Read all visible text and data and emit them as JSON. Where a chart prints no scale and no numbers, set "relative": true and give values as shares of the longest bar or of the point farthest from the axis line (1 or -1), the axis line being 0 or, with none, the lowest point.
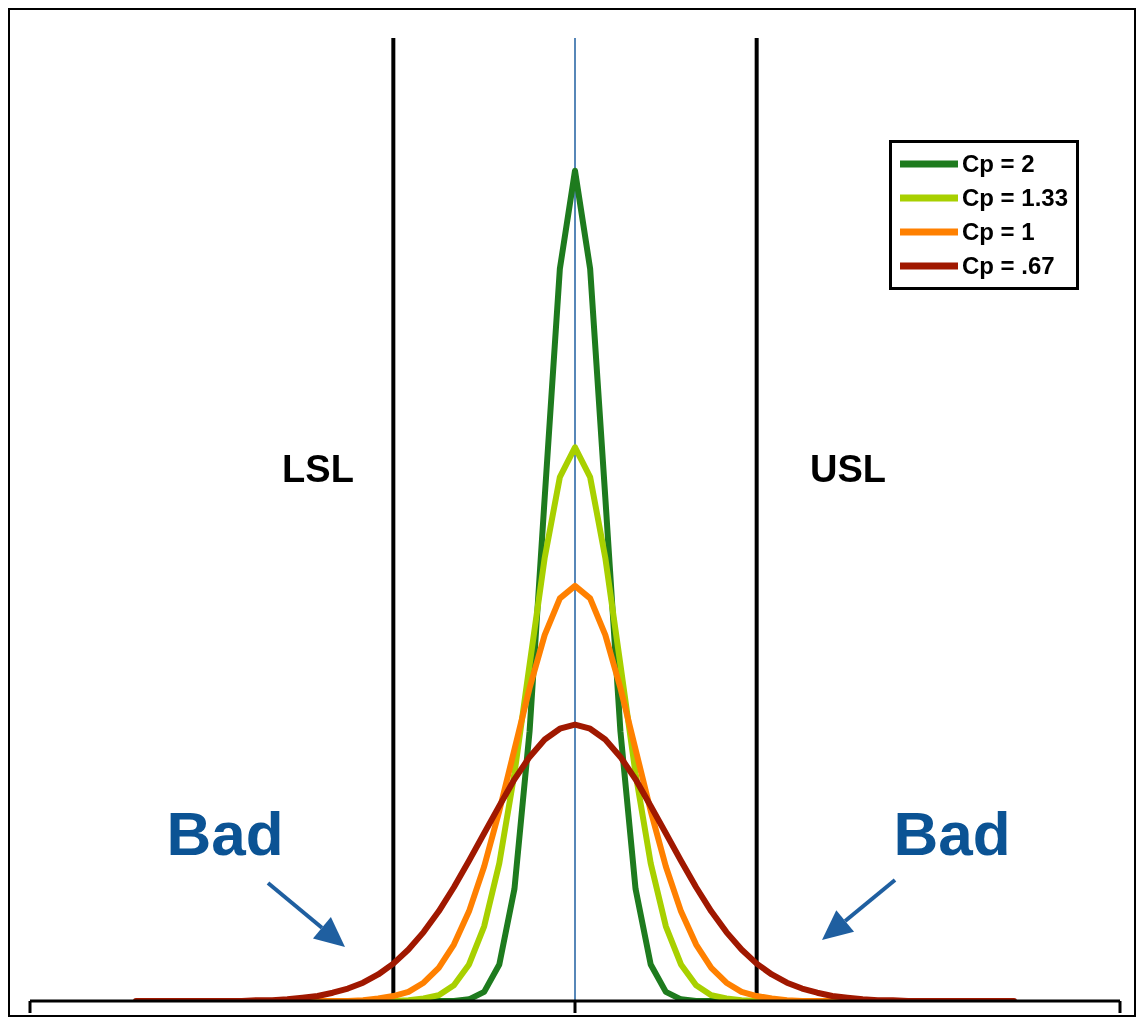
{
  "chart_data": {
    "type": "line",
    "relative": true,
    "categories": [
      null,
      null,
      null,
      null,
      null,
      null,
      null,
      null,
      null,
      null,
      null,
      null,
      null,
      null,
      null,
      null,
      null,
      null,
      null,
      null,
      null,
      null,
      null,
      null,
      null,
      null,
      null,
      null,
      null,
      null,
      null,
      null,
      null,
      null,
      null,
      null,
      null,
      null,
      null,
      null,
      null,
      null,
      null,
      null,
      null,
      null,
      null,
      null,
      null,
      null,
      null,
      null,
      null,
      null,
      null,
      null,
      null,
      null,
      null,
      null,
      null,
      null,
      null,
      null,
      null,
      null,
      null,
      null,
      null,
      null,
      null,
      null,
      null
    ],
    "legend": "top right",
    "marker": "none",
    "line_style": "solid",
    "series": [
      {
        "name": "Cp = 2",
        "color": "#1e7b1e",
        "values": [
          null,
          null,
          null,
          null,
          null,
          null,
          null,
          null,
          null,
          null,
          null,
          null,
          null,
          null,
          null,
          null,
          null,
          null,
          null,
          null,
          null,
          null,
          null,
          null,
          null,
          null,
          0,
          0,
          0,
          0.002,
          0.011,
          0.044,
          0.135,
          0.325,
          0.607,
          0.882,
          1,
          0.882,
          0.607,
          0.325,
          0.135,
          0.044,
          0.011,
          0.002,
          0,
          0,
          0,
          null,
          null,
          null,
          null,
          null,
          null,
          null,
          null,
          null,
          null,
          null,
          null,
          null,
          null,
          null,
          null,
          null,
          null,
          null,
          null,
          null,
          null,
          null,
          null,
          null,
          null
        ]
      },
      {
        "name": "Cp = 1.33",
        "color": "#a8d000",
        "values": [
          null,
          null,
          null,
          null,
          null,
          null,
          null,
          null,
          null,
          null,
          null,
          null,
          null,
          null,
          null,
          null,
          null,
          null,
          null,
          null,
          null,
          null,
          0,
          0,
          0,
          0.001,
          0.003,
          0.007,
          0.019,
          0.044,
          0.09,
          0.166,
          0.274,
          0.405,
          0.534,
          0.631,
          0.667,
          0.631,
          0.534,
          0.405,
          0.274,
          0.166,
          0.09,
          0.044,
          0.019,
          0.007,
          0.003,
          0.001,
          0,
          0,
          0,
          null,
          null,
          null,
          null,
          null,
          null,
          null,
          null,
          null,
          null,
          null,
          null,
          null,
          null,
          null,
          null,
          null,
          null,
          null,
          null,
          null,
          null
        ]
      },
      {
        "name": "Cp = 1",
        "color": "#ff8000",
        "values": [
          null,
          null,
          null,
          null,
          null,
          null,
          null,
          null,
          null,
          null,
          null,
          null,
          null,
          null,
          null,
          null,
          null,
          null,
          0,
          0,
          0,
          0,
          0.001,
          0.003,
          0.006,
          0.011,
          0.022,
          0.04,
          0.068,
          0.108,
          0.162,
          0.229,
          0.303,
          0.377,
          0.441,
          0.485,
          0.5,
          0.485,
          0.441,
          0.377,
          0.303,
          0.229,
          0.162,
          0.108,
          0.068,
          0.04,
          0.022,
          0.011,
          0.006,
          0.003,
          0.001,
          0,
          0,
          0,
          0,
          null,
          null,
          null,
          null,
          null,
          null,
          null,
          null,
          null,
          null,
          null,
          null,
          null,
          null,
          null,
          null,
          null,
          null
        ]
      },
      {
        "name": "Cp = .67",
        "color": "#a01800",
        "values": [
          null,
          null,
          null,
          null,
          null,
          null,
          null,
          0,
          0,
          0,
          0,
          0,
          0,
          0,
          0,
          0.001,
          0.001,
          0.002,
          0.004,
          0.006,
          0.01,
          0.015,
          0.022,
          0.032,
          0.045,
          0.062,
          0.083,
          0.108,
          0.137,
          0.169,
          0.202,
          0.235,
          0.267,
          0.294,
          0.315,
          0.328,
          0.333,
          0.328,
          0.315,
          0.294,
          0.267,
          0.235,
          0.202,
          0.169,
          0.137,
          0.108,
          0.083,
          0.062,
          0.045,
          0.032,
          0.022,
          0.015,
          0.01,
          0.006,
          0.004,
          0.002,
          0.001,
          0.001,
          0,
          0,
          0,
          0,
          0,
          0,
          0,
          0,
          null,
          null,
          null,
          null,
          null,
          null,
          null
        ]
      }
    ],
    "annotations": [
      "LSL",
      "USL",
      "Bad",
      "Bad"
    ]
  }
}
